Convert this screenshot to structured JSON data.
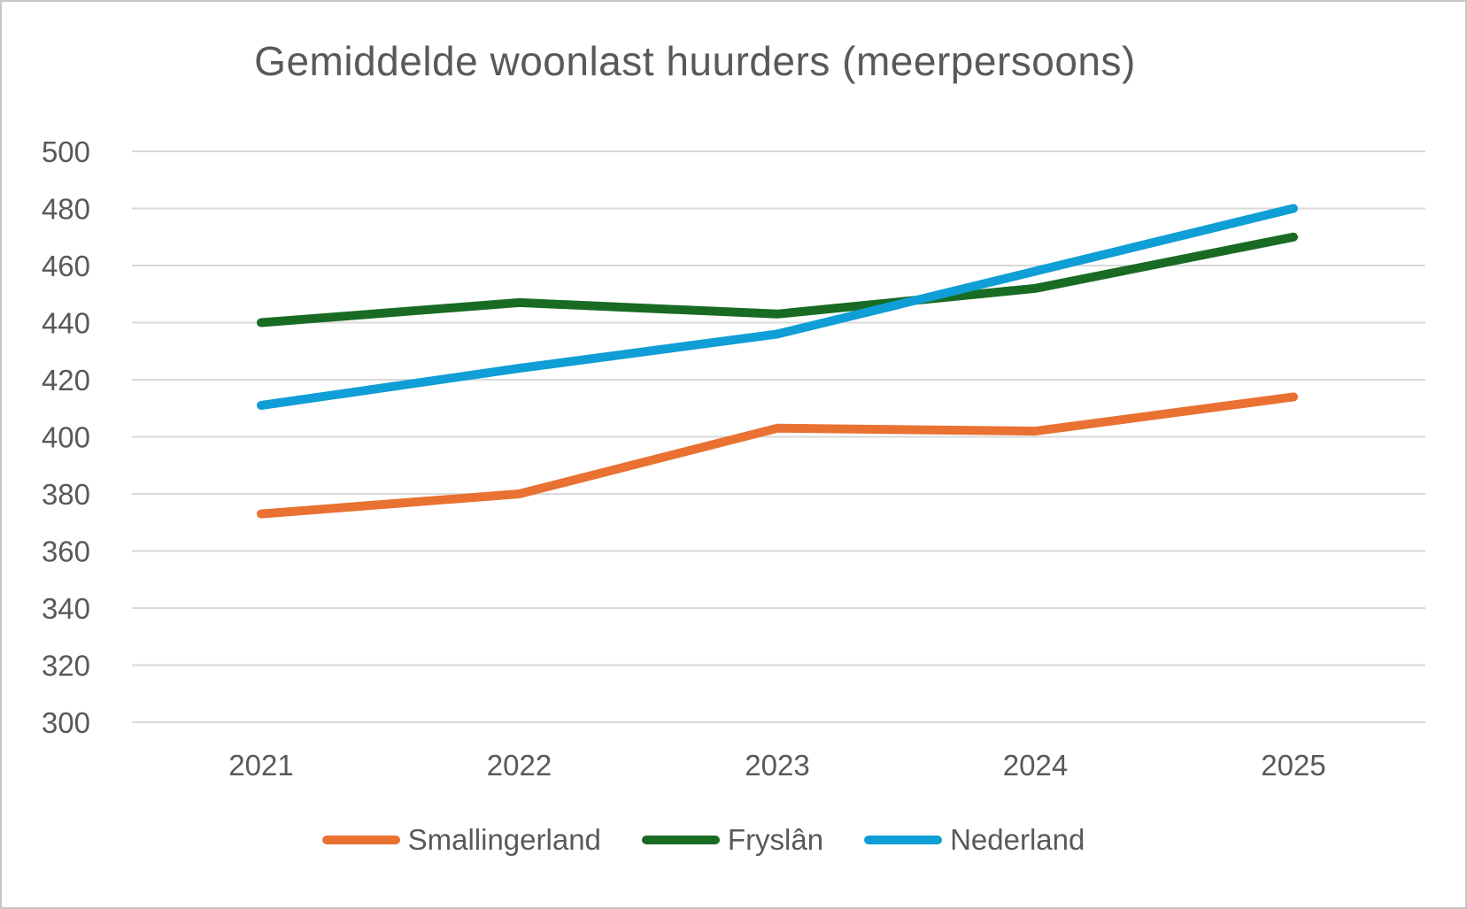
{
  "title": "Gemiddelde woonlast huurders (meerpersoons)",
  "chart_data": {
    "type": "line",
    "title": "Gemiddelde woonlast huurders (meerpersoons)",
    "categories": [
      "2021",
      "2022",
      "2023",
      "2024",
      "2025"
    ],
    "series": [
      {
        "name": "Smallingerland",
        "color": "#E97132",
        "values": [
          373,
          380,
          403,
          402,
          414
        ]
      },
      {
        "name": "Fryslân",
        "color": "#196B24",
        "values": [
          440,
          447,
          443,
          452,
          470
        ]
      },
      {
        "name": "Nederland",
        "color": "#0F9ED5",
        "values": [
          411,
          424,
          436,
          458,
          480
        ]
      }
    ],
    "xlabel": "",
    "ylabel": "",
    "ylim": [
      300,
      500
    ],
    "y_tick_step": 20,
    "y_ticks": [
      500,
      480,
      460,
      440,
      420,
      400,
      380,
      360,
      340,
      320,
      300
    ],
    "grid": "horizontal",
    "legend_position": "bottom",
    "colors": {
      "text": "#595959",
      "gridline": "#D9D9D9",
      "background": "#FFFFFF",
      "frame_border": "#C6C6C6"
    }
  }
}
